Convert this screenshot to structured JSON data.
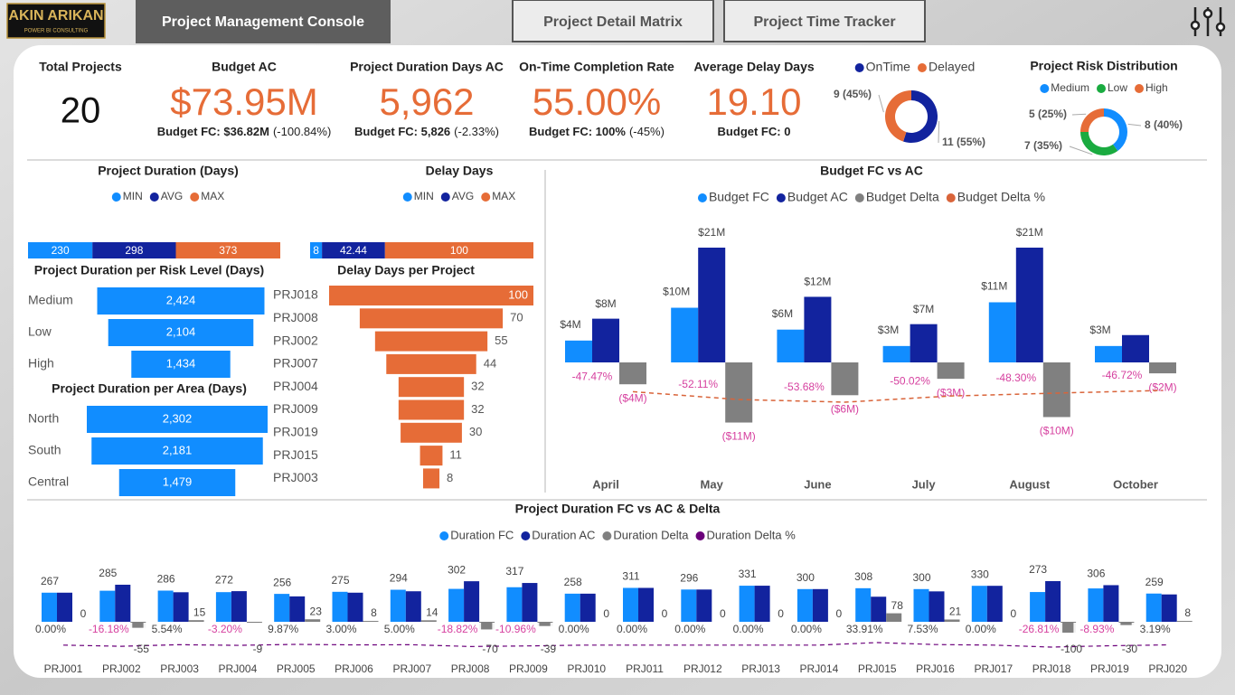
{
  "logo": {
    "name": "AKIN ARIKAN",
    "tagline": "POWER BI CONSULTING"
  },
  "tabs": [
    "Project Management Console",
    "Project Detail Matrix",
    "Project Time Tracker"
  ],
  "kpis": [
    {
      "title": "Total Projects",
      "value": "20"
    },
    {
      "title": "Budget AC",
      "value": "$73.95M",
      "target": "Budget FC: $36.82M",
      "variance": "(-100.84%)"
    },
    {
      "title": "Project Duration Days AC",
      "value": "5,962",
      "target": "Budget FC: 5,826",
      "variance": "(-2.33%)"
    },
    {
      "title": "On-Time Completion Rate",
      "value": "55.00%",
      "target": "Budget FC: 100%",
      "variance": "(-45%)"
    },
    {
      "title": "Average Delay Days",
      "value": "19.10",
      "target": "Budget FC: 0"
    }
  ],
  "status": {
    "type": "donut",
    "categories": [
      "OnTime",
      "Delayed"
    ],
    "colors": [
      "#12239e",
      "#e66c37"
    ],
    "values": [
      11,
      9
    ],
    "value_labels": [
      "11 (55%)",
      "9 (45%)"
    ]
  },
  "risk": {
    "type": "donut",
    "title": "Project Risk Distribution",
    "categories": [
      "Medium",
      "Low",
      "High"
    ],
    "colors": [
      "#118dff",
      "#1aab40",
      "#e66c37"
    ],
    "values": [
      8,
      7,
      5
    ],
    "value_labels": [
      "8 (40%)",
      "7 (35%)",
      "5 (25%)"
    ]
  },
  "duration_summary": {
    "type": "stacked-bar",
    "title": "Project Duration (Days)",
    "categories": [
      "MIN",
      "AVG",
      "MAX"
    ],
    "colors": [
      "#118dff",
      "#12239e",
      "#e66c37"
    ],
    "values": [
      230,
      298,
      373
    ]
  },
  "delay_summary": {
    "type": "stacked-bar",
    "title": "Delay Days",
    "categories": [
      "MIN",
      "AVG",
      "MAX"
    ],
    "colors": [
      "#118dff",
      "#12239e",
      "#e66c37"
    ],
    "values": [
      8,
      42.44,
      100
    ]
  },
  "duration_by_risk": {
    "type": "funnel",
    "title": "Project Duration per Risk Level (Days)",
    "categories": [
      "Medium",
      "Low",
      "High"
    ],
    "values": [
      2424,
      2104,
      1434
    ],
    "value_labels": [
      "2,424",
      "2,104",
      "1,434"
    ],
    "color": "#118dff"
  },
  "duration_by_area": {
    "type": "funnel",
    "title": "Project Duration per Area (Days)",
    "categories": [
      "North",
      "South",
      "Central"
    ],
    "values": [
      2302,
      2181,
      1479
    ],
    "value_labels": [
      "2,302",
      "2,181",
      "1,479"
    ],
    "color": "#118dff"
  },
  "delay_by_project": {
    "type": "funnel",
    "title": "Delay Days per Project",
    "categories": [
      "PRJ018",
      "PRJ008",
      "PRJ002",
      "PRJ007",
      "PRJ004",
      "PRJ009",
      "PRJ019",
      "PRJ015",
      "PRJ003"
    ],
    "values": [
      100,
      70,
      55,
      44,
      32,
      32,
      30,
      11,
      8
    ],
    "color": "#e66c37"
  },
  "budget": {
    "type": "bar",
    "title": "Budget FC vs AC",
    "categories": [
      "April",
      "May",
      "June",
      "July",
      "August",
      "October"
    ],
    "series": [
      {
        "name": "Budget FC",
        "color": "#118dff",
        "values": [
          4,
          10,
          6,
          3,
          11,
          3
        ],
        "value_labels": [
          "$4M",
          "$10M",
          "$6M",
          "$3M",
          "$11M",
          "$3M"
        ]
      },
      {
        "name": "Budget AC",
        "color": "#12239e",
        "values": [
          8,
          21,
          12,
          7,
          21,
          5
        ],
        "value_labels": [
          "$8M",
          "$21M",
          "$12M",
          "$7M",
          "$21M",
          null
        ]
      },
      {
        "name": "Budget Delta",
        "color": "#808080",
        "values": [
          -4,
          -11,
          -6,
          -3,
          -10,
          -2
        ],
        "value_labels": [
          "($4M)",
          "($11M)",
          "($6M)",
          "($3M)",
          "($10M)",
          "($2M)"
        ]
      },
      {
        "name": "Budget Delta %",
        "color": "#d9643a",
        "values": [
          -47.47,
          -52.11,
          -53.68,
          -50.02,
          -48.3,
          -46.72
        ],
        "value_labels": [
          "-47.47%",
          "-52.11%",
          "-53.68%",
          "-50.02%",
          "-48.30%",
          "-46.72%"
        ]
      }
    ]
  },
  "duration": {
    "type": "bar",
    "title": "Project Duration FC vs AC & Delta",
    "categories": [
      "PRJ001",
      "PRJ002",
      "PRJ003",
      "PRJ004",
      "PRJ005",
      "PRJ006",
      "PRJ007",
      "PRJ008",
      "PRJ009",
      "PRJ010",
      "PRJ011",
      "PRJ012",
      "PRJ013",
      "PRJ014",
      "PRJ015",
      "PRJ016",
      "PRJ017",
      "PRJ018",
      "PRJ019",
      "PRJ020"
    ],
    "series": [
      {
        "name": "Duration FC",
        "color": "#118dff",
        "values": [
          267,
          285,
          286,
          272,
          256,
          275,
          294,
          302,
          317,
          258,
          311,
          296,
          331,
          300,
          308,
          300,
          330,
          273,
          306,
          259
        ]
      },
      {
        "name": "Duration AC",
        "color": "#12239e",
        "values": [
          267,
          340,
          271,
          281,
          233,
          267,
          280,
          372,
          356,
          258,
          311,
          296,
          331,
          300,
          230,
          279,
          330,
          373,
          336,
          251
        ]
      },
      {
        "name": "Duration Delta",
        "color": "#808080",
        "values": [
          0,
          -55,
          15,
          -9,
          23,
          8,
          14,
          -70,
          -39,
          0,
          0,
          0,
          0,
          0,
          78,
          21,
          0,
          -100,
          -30,
          8
        ]
      },
      {
        "name": "Duration Delta %",
        "color": "#6b007b",
        "values": [
          0,
          -16.18,
          5.54,
          -3.2,
          9.87,
          3.0,
          5.0,
          -18.82,
          -10.96,
          0,
          0,
          0,
          0,
          0,
          33.91,
          7.53,
          0,
          -26.81,
          -8.93,
          3.19
        ],
        "value_labels": [
          "0.00%",
          "-16.18%",
          "5.54%",
          "-3.20%",
          "9.87%",
          "3.00%",
          "5.00%",
          "-18.82%",
          "-10.96%",
          "0.00%",
          "0.00%",
          "0.00%",
          "0.00%",
          "0.00%",
          "33.91%",
          "7.53%",
          "0.00%",
          "-26.81%",
          "-8.93%",
          "3.19%"
        ]
      }
    ]
  }
}
